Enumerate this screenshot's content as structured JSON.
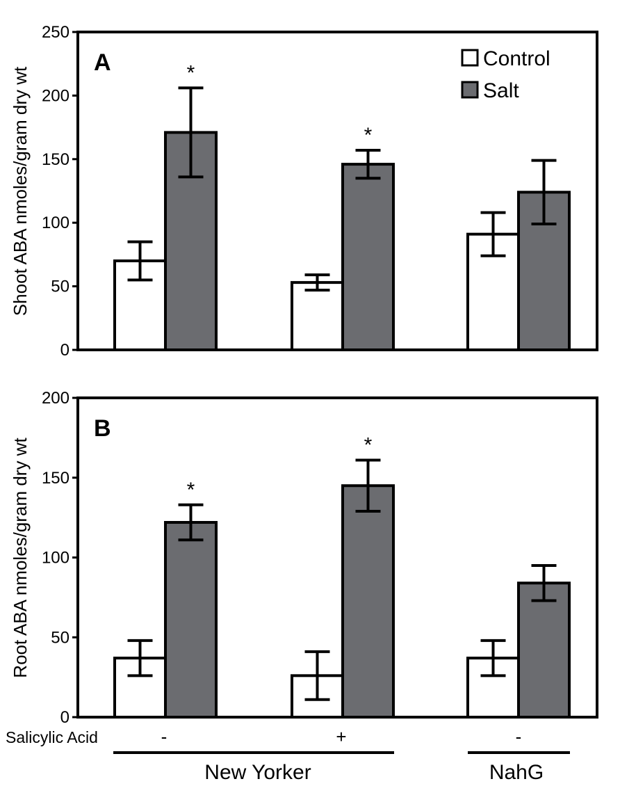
{
  "chart_data": [
    {
      "panel_label": "A",
      "type": "bar",
      "ylabel": "Shoot ABA nmoles/gram dry wt",
      "ylim": [
        0,
        250
      ],
      "yticks": [
        0,
        50,
        100,
        150,
        200,
        250
      ],
      "groups": 3,
      "series": [
        {
          "name": "Control",
          "values": [
            70,
            53,
            91
          ],
          "errors": [
            15,
            6,
            17
          ],
          "color": "#ffffff"
        },
        {
          "name": "Salt",
          "values": [
            171,
            146,
            124
          ],
          "errors": [
            35,
            11,
            25
          ],
          "color": "#6b6c70"
        }
      ],
      "significance": [
        [
          "",
          "*"
        ],
        [
          "",
          "*"
        ],
        [
          "",
          ""
        ]
      ],
      "legend": [
        "Control",
        "Salt"
      ],
      "legend_position": "top-right"
    },
    {
      "panel_label": "B",
      "type": "bar",
      "ylabel": "Root ABA nmoles/gram dry wt",
      "ylim": [
        0,
        200
      ],
      "yticks": [
        0,
        50,
        100,
        150,
        200
      ],
      "groups": 3,
      "series": [
        {
          "name": "Control",
          "values": [
            37,
            26,
            37
          ],
          "errors": [
            11,
            15,
            11
          ],
          "color": "#ffffff"
        },
        {
          "name": "Salt",
          "values": [
            122,
            145,
            84
          ],
          "errors": [
            11,
            16,
            11
          ],
          "color": "#6b6c70"
        }
      ],
      "significance": [
        [
          "",
          "*"
        ],
        [
          "",
          "*"
        ],
        [
          "",
          ""
        ]
      ]
    }
  ],
  "x_annotations": {
    "row_label": "Salicylic Acid",
    "treatments": [
      "-",
      "+",
      "-"
    ],
    "genotypes": [
      {
        "label": "New Yorker",
        "groups": [
          0,
          1
        ]
      },
      {
        "label": "NahG",
        "groups": [
          2
        ]
      }
    ]
  }
}
